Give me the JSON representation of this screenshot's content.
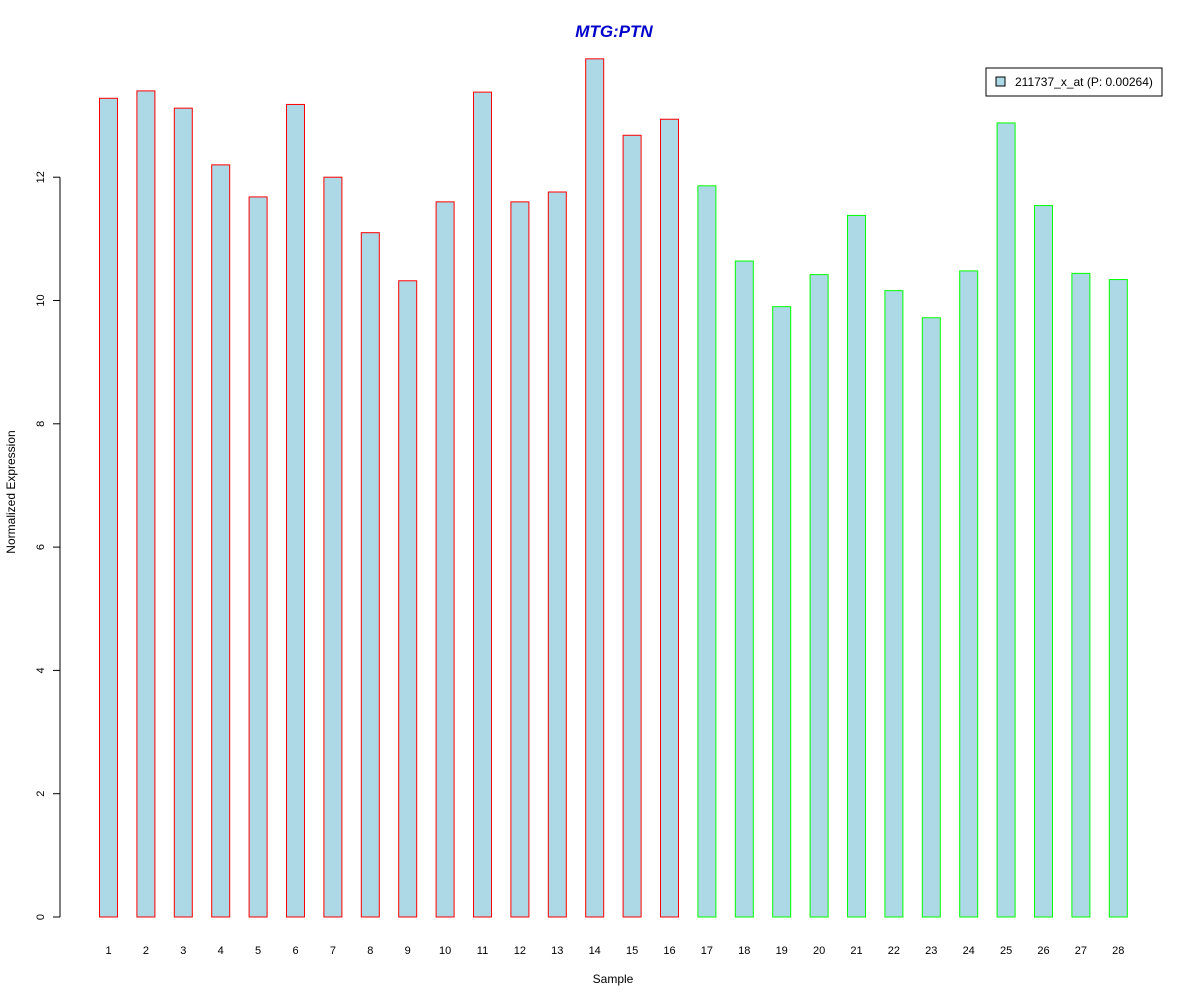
{
  "chart_data": {
    "type": "bar",
    "title": "MTG:PTN",
    "xlabel": "Sample",
    "ylabel": "Normalized Expression",
    "ylim": [
      0,
      14
    ],
    "yticks": [
      0,
      2,
      4,
      6,
      8,
      10,
      12
    ],
    "grid": false,
    "legend_position": "top-right",
    "categories": [
      "1",
      "2",
      "3",
      "4",
      "5",
      "6",
      "7",
      "8",
      "9",
      "10",
      "11",
      "12",
      "13",
      "14",
      "15",
      "16",
      "17",
      "18",
      "19",
      "20",
      "21",
      "22",
      "23",
      "24",
      "25",
      "26",
      "27",
      "28"
    ],
    "series": [
      {
        "name": "211737_x_at (P: 0.00264)",
        "values": [
          13.28,
          13.4,
          13.12,
          12.2,
          11.68,
          13.18,
          12.0,
          11.1,
          10.32,
          11.6,
          13.38,
          11.6,
          11.76,
          13.92,
          12.68,
          12.94,
          11.86,
          10.64,
          9.9,
          10.42,
          11.38,
          10.16,
          9.72,
          10.48,
          12.88,
          11.54,
          10.44,
          10.34
        ]
      }
    ],
    "groups": [
      1,
      1,
      1,
      1,
      1,
      1,
      1,
      1,
      1,
      1,
      1,
      1,
      1,
      1,
      1,
      1,
      2,
      2,
      2,
      2,
      2,
      2,
      2,
      2,
      2,
      2,
      2,
      2
    ],
    "colors": {
      "fill": "#add8e6",
      "group1_border": "#ff0000",
      "group2_border": "#00ff00",
      "title": "#0000cd",
      "axis": "#000000"
    }
  }
}
